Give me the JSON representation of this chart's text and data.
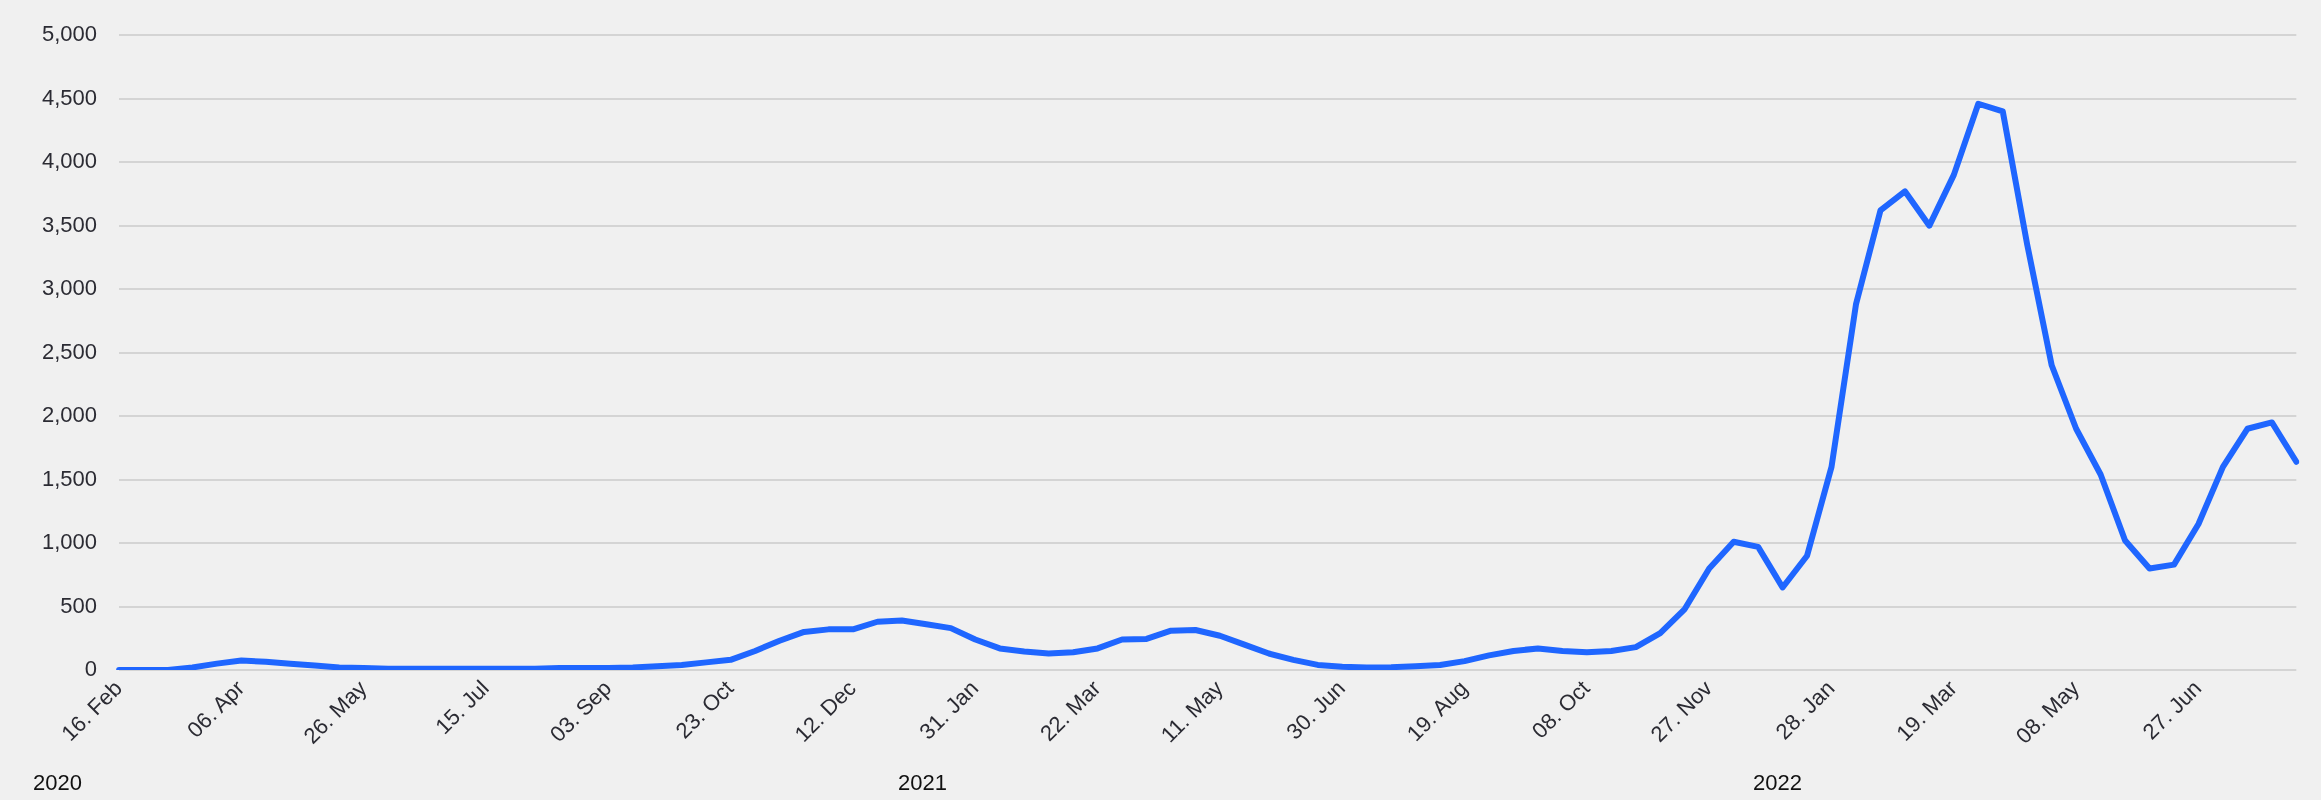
{
  "chart_data": {
    "type": "line",
    "categories": [
      "16. Feb",
      null,
      null,
      null,
      null,
      "06. Apr",
      null,
      null,
      null,
      null,
      "26. May",
      null,
      null,
      null,
      null,
      "15. Jul",
      null,
      null,
      null,
      null,
      "03. Sep",
      null,
      null,
      null,
      null,
      "23. Oct",
      null,
      null,
      null,
      null,
      "12. Dec",
      null,
      null,
      null,
      null,
      "31. Jan",
      null,
      null,
      null,
      null,
      "22. Mar",
      null,
      null,
      null,
      null,
      "11. May",
      null,
      null,
      null,
      null,
      "30. Jun",
      null,
      null,
      null,
      null,
      "19. Aug",
      null,
      null,
      null,
      null,
      "08. Oct",
      null,
      null,
      null,
      null,
      "27. Nov",
      null,
      null,
      null,
      null,
      "28. Jan",
      null,
      null,
      null,
      null,
      "19. Mar",
      null,
      null,
      null,
      null,
      "08. May",
      null,
      null,
      null,
      null,
      "27. Jun",
      null,
      null,
      null,
      null
    ],
    "series": [
      {
        "color": "#1f66ff",
        "values": [
          0,
          0,
          0,
          20,
          50,
          75,
          65,
          50,
          35,
          20,
          15,
          10,
          10,
          10,
          10,
          10,
          10,
          10,
          15,
          15,
          15,
          20,
          30,
          40,
          60,
          80,
          150,
          230,
          300,
          320,
          320,
          380,
          390,
          360,
          330,
          240,
          170,
          145,
          130,
          140,
          170,
          240,
          245,
          310,
          315,
          270,
          200,
          130,
          80,
          40,
          25,
          20,
          22,
          30,
          40,
          70,
          115,
          150,
          170,
          150,
          140,
          150,
          180,
          290,
          480,
          800,
          1010,
          970,
          650,
          900,
          1600,
          2880,
          3620,
          3770,
          3500,
          3900,
          4460,
          4400,
          3350,
          2400,
          1900,
          1540,
          1020,
          800,
          830,
          1150,
          1600,
          1900,
          1950,
          1640
        ]
      }
    ],
    "ylim": [
      0,
      5000
    ],
    "yticks": [
      0,
      500,
      {
        "value": 1000,
        "label": "1,000"
      },
      {
        "value": 1500,
        "label": "1,500"
      },
      {
        "value": 2000,
        "label": "2,000"
      },
      {
        "value": 2500,
        "label": "2,500"
      },
      {
        "value": 3000,
        "label": "3,000"
      },
      {
        "value": 3500,
        "label": "3,500"
      },
      {
        "value": 4000,
        "label": "4,000"
      },
      {
        "value": 4500,
        "label": "4,500"
      },
      {
        "value": 5000,
        "label": "5,000"
      }
    ],
    "grid": "y",
    "marker": "none",
    "line_style": "solid",
    "annotations": [
      "2020",
      "2021",
      "2022"
    ]
  }
}
